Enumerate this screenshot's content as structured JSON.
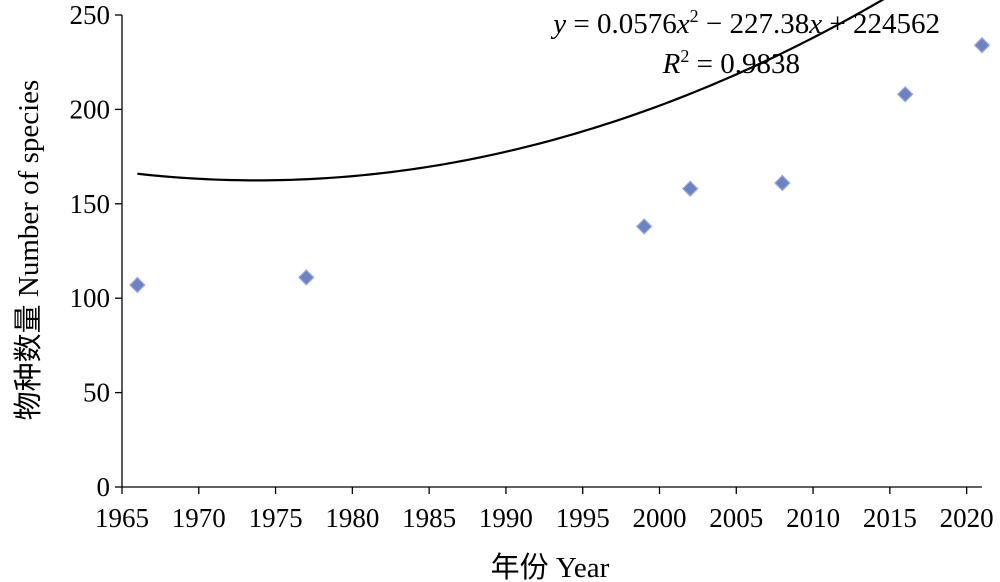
{
  "chart_data": {
    "type": "scatter",
    "xlabel": "年份 Year",
    "ylabel": "物种数量 Number of species",
    "xlim": [
      1965,
      2021
    ],
    "ylim": [
      0,
      250
    ],
    "x_ticks": [
      "1965",
      "1970",
      "1975",
      "1980",
      "1985",
      "1990",
      "1995",
      "2000",
      "2005",
      "2010",
      "2015",
      "2020"
    ],
    "y_ticks": [
      "0",
      "50",
      "100",
      "150",
      "200",
      "250"
    ],
    "grid": false,
    "series": [
      {
        "marker": "diamond",
        "color": "#6c82c2",
        "x": [
          1966,
          1977,
          1999,
          2002,
          2008,
          2016,
          2021
        ],
        "y": [
          107,
          111,
          138,
          158,
          161,
          208,
          234
        ]
      }
    ],
    "trendline": {
      "type": "polynomial",
      "order": 2,
      "coefficients": [
        0.0576,
        -227.38,
        224562
      ],
      "color": "#000000"
    },
    "annotations": {
      "equation": {
        "y_var": "y",
        "part1": " = 0.0576",
        "x_var1": "x",
        "exp": "2",
        "part2": " − 227.38",
        "x_var2": "x",
        "part3": " + 224562"
      },
      "r2": {
        "r_var": "R",
        "exp": "2",
        "value": " = 0.9838"
      }
    }
  }
}
